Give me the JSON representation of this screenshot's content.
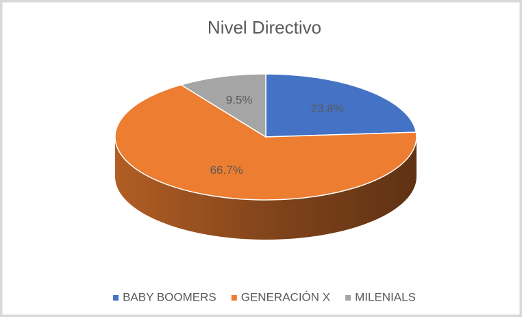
{
  "chart_data": {
    "type": "pie",
    "title": "Nivel Directivo",
    "categories": [
      "BABY BOOMERS",
      "GENERACIÓN X",
      "MILENIALS"
    ],
    "values": [
      23.8,
      66.7,
      9.5
    ],
    "value_labels": [
      "23.8%",
      "66.7%",
      "9.5%"
    ],
    "colors": [
      "#4472c4",
      "#ed7d31",
      "#a5a5a5"
    ],
    "legend": "bottom"
  }
}
